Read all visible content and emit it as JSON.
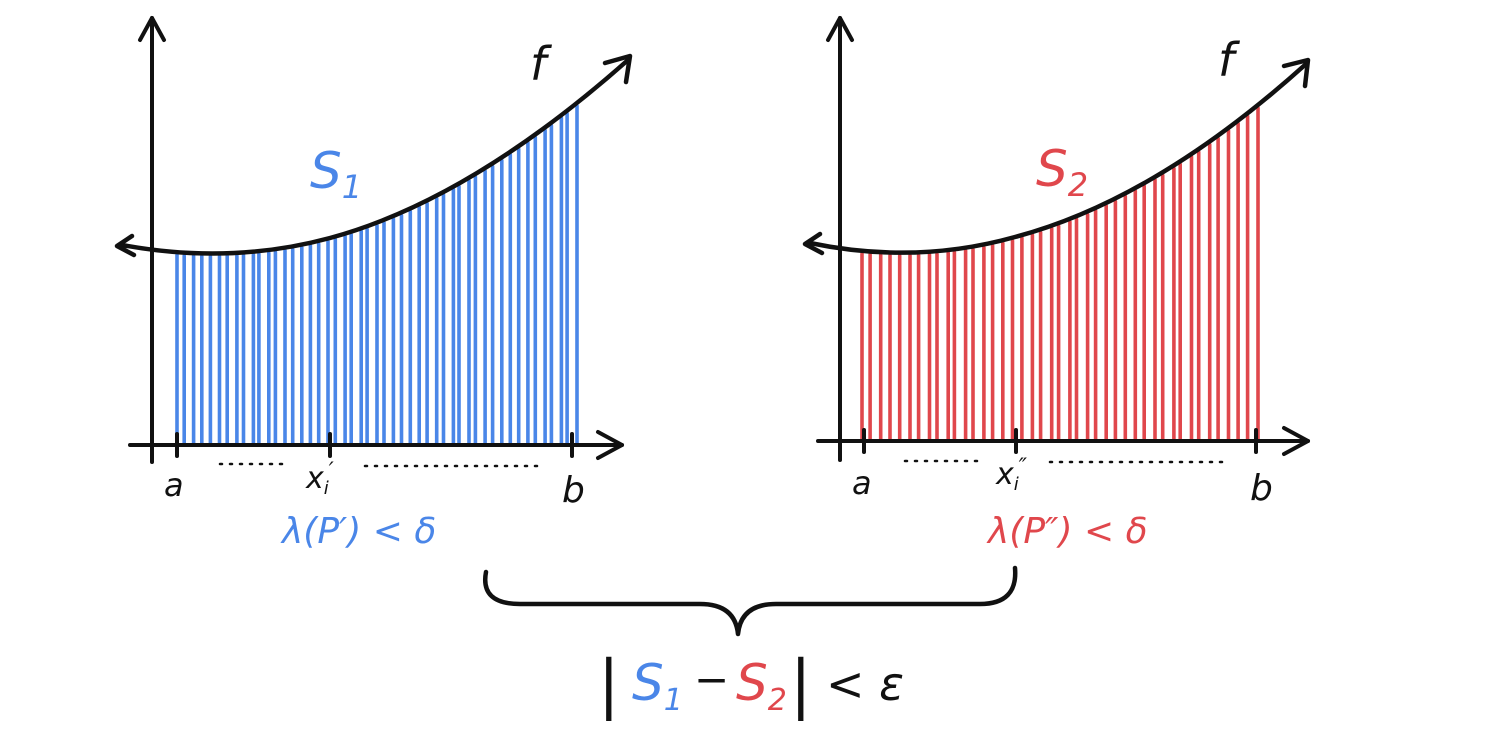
{
  "colors": {
    "left_accent": "#4a86e8",
    "right_accent": "#e0474c",
    "ink": "#111111"
  },
  "left_panel": {
    "function_label": "f",
    "sum_label": {
      "base": "S",
      "sub": "1"
    },
    "endpoint_a": "a",
    "endpoint_b": "b",
    "sample_point": {
      "base": "x",
      "sub": "i",
      "prime": "′"
    },
    "mesh_condition": "λ(P′) < δ",
    "bar_count": 48
  },
  "right_panel": {
    "function_label": "f",
    "sum_label": {
      "base": "S",
      "sub": "2"
    },
    "endpoint_a": "a",
    "endpoint_b": "b",
    "sample_point": {
      "base": "x",
      "sub": "i",
      "prime": "″"
    },
    "mesh_condition": "λ(P″) < δ",
    "bar_count": 42
  },
  "conclusion": {
    "bar_left": "|",
    "s1": {
      "base": "S",
      "sub": "1"
    },
    "minus": "−",
    "s2": {
      "base": "S",
      "sub": "2"
    },
    "bar_right": "|",
    "relation": "< ε"
  }
}
